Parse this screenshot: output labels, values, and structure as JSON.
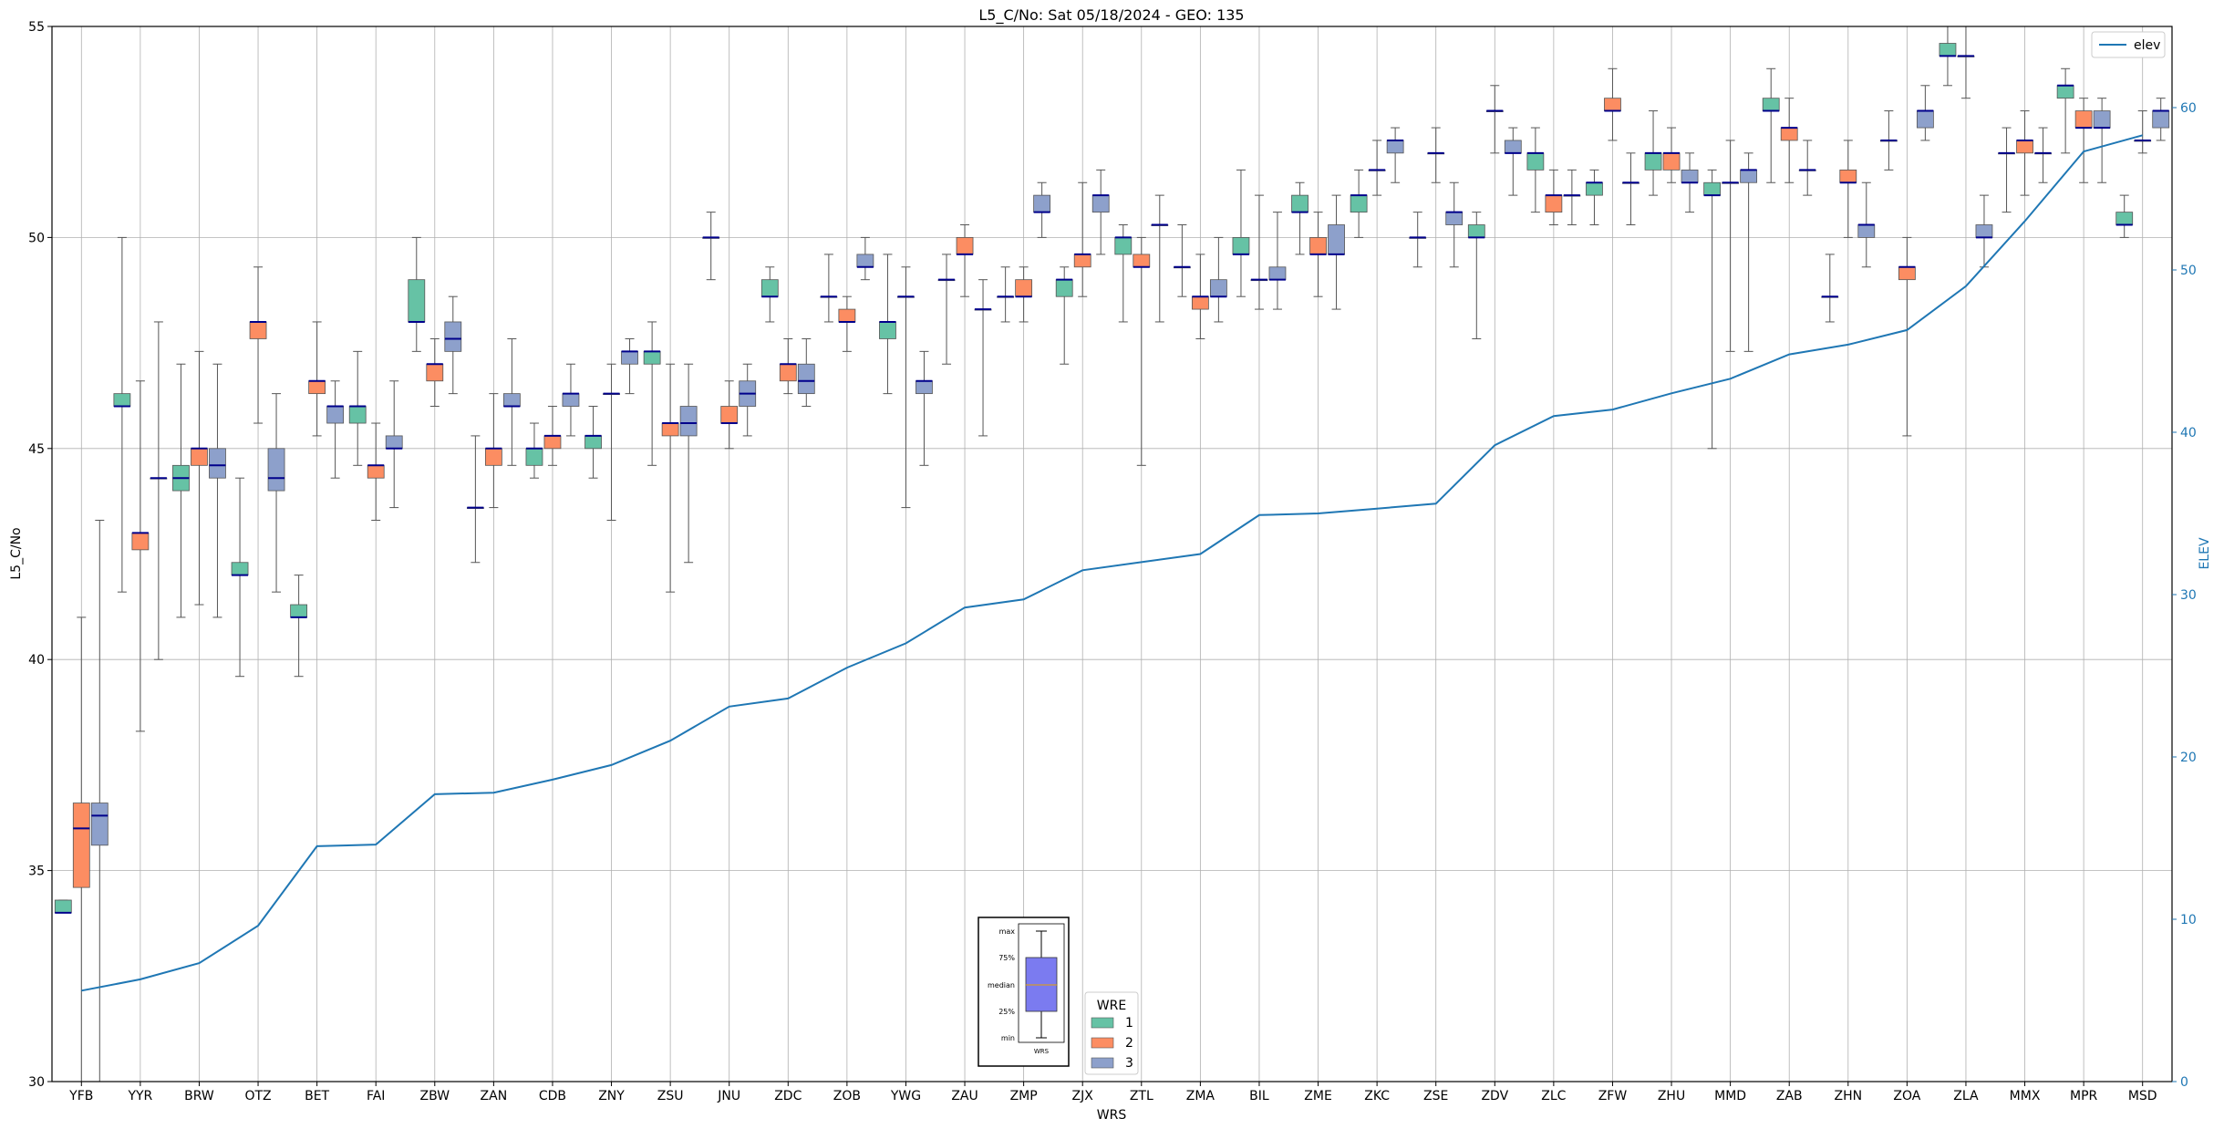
{
  "chart_data": {
    "type": "boxplot",
    "title": "L5_C/No: Sat 05/18/2024 - GEO: 135",
    "xlabel": "WRS",
    "ylabel": "L5_C/No",
    "y2label": "ELEV",
    "ylim": [
      30,
      55
    ],
    "y2lim": [
      0,
      65
    ],
    "yticks": [
      "30",
      "35",
      "40",
      "45",
      "50",
      "55"
    ],
    "y2ticks": [
      "0",
      "10",
      "20",
      "30",
      "40",
      "50",
      "60"
    ],
    "grid": true,
    "categories": [
      "YFB",
      "YYR",
      "BRW",
      "OTZ",
      "BET",
      "FAI",
      "ZBW",
      "ZAN",
      "CDB",
      "ZNY",
      "ZSU",
      "JNU",
      "ZDC",
      "ZOB",
      "YWG",
      "ZAU",
      "ZMP",
      "ZJX",
      "ZTL",
      "ZMA",
      "BIL",
      "ZME",
      "ZKC",
      "ZSE",
      "ZDV",
      "ZLC",
      "ZFW",
      "ZHU",
      "MMD",
      "ZAB",
      "ZHN",
      "ZOA",
      "ZLA",
      "MMX",
      "MPR",
      "MSD"
    ],
    "wre_colors": {
      "1": "#66c2a5",
      "2": "#fc8d62",
      "3": "#8da0cb"
    },
    "legend_wre": {
      "title": "WRE",
      "entries": [
        "1",
        "2",
        "3"
      ]
    },
    "legend_elev": {
      "label": "elev",
      "color": "#1f77b4",
      "placement": "top-right"
    },
    "key_labels": {
      "max": "max",
      "p75": "75%",
      "median": "median",
      "p25": "25%",
      "min": "min",
      "xlabel": "WRS"
    },
    "elev": [
      5.6,
      6.3,
      7.3,
      9.6,
      14.5,
      14.6,
      17.7,
      17.8,
      18.6,
      19.5,
      21.0,
      23.1,
      23.6,
      25.5,
      27.0,
      29.2,
      29.7,
      31.5,
      32.0,
      32.5,
      34.9,
      35.0,
      35.3,
      35.6,
      39.2,
      41.0,
      41.4,
      42.4,
      43.3,
      44.8,
      45.4,
      46.3,
      49.0,
      53.0,
      57.3,
      58.3
    ],
    "boxes": [
      [
        {
          "wre": 1,
          "min": 34.0,
          "q1": 34.0,
          "med": 34.0,
          "q3": 34.3,
          "max": 34.3
        },
        {
          "wre": 2,
          "min": 30.0,
          "q1": 34.6,
          "med": 36.0,
          "q3": 36.6,
          "max": 41.0
        },
        {
          "wre": 3,
          "min": 30.0,
          "q1": 35.6,
          "med": 36.3,
          "q3": 36.6,
          "max": 43.3
        }
      ],
      [
        {
          "wre": 1,
          "min": 41.6,
          "q1": 46.0,
          "med": 46.0,
          "q3": 46.3,
          "max": 50.0
        },
        {
          "wre": 2,
          "min": 38.3,
          "q1": 42.6,
          "med": 43.0,
          "q3": 43.0,
          "max": 46.6
        },
        {
          "wre": 3,
          "min": 40.0,
          "q1": 44.3,
          "med": 44.3,
          "q3": 44.3,
          "max": 48.0
        }
      ],
      [
        {
          "wre": 1,
          "min": 41.0,
          "q1": 44.0,
          "med": 44.3,
          "q3": 44.6,
          "max": 47.0
        },
        {
          "wre": 2,
          "min": 41.3,
          "q1": 44.6,
          "med": 45.0,
          "q3": 45.0,
          "max": 47.3
        },
        {
          "wre": 3,
          "min": 41.0,
          "q1": 44.3,
          "med": 44.6,
          "q3": 45.0,
          "max": 47.0
        }
      ],
      [
        {
          "wre": 1,
          "min": 39.6,
          "q1": 42.0,
          "med": 42.0,
          "q3": 42.3,
          "max": 44.3
        },
        {
          "wre": 2,
          "min": 45.6,
          "q1": 47.6,
          "med": 48.0,
          "q3": 48.0,
          "max": 49.3
        },
        {
          "wre": 3,
          "min": 41.6,
          "q1": 44.0,
          "med": 44.3,
          "q3": 45.0,
          "max": 46.3
        }
      ],
      [
        {
          "wre": 1,
          "min": 39.6,
          "q1": 41.0,
          "med": 41.0,
          "q3": 41.3,
          "max": 42.0
        },
        {
          "wre": 2,
          "min": 45.3,
          "q1": 46.3,
          "med": 46.6,
          "q3": 46.6,
          "max": 48.0
        },
        {
          "wre": 3,
          "min": 44.3,
          "q1": 45.6,
          "med": 46.0,
          "q3": 46.0,
          "max": 46.6
        }
      ],
      [
        {
          "wre": 1,
          "min": 44.6,
          "q1": 45.6,
          "med": 46.0,
          "q3": 46.0,
          "max": 47.3
        },
        {
          "wre": 2,
          "min": 43.3,
          "q1": 44.3,
          "med": 44.6,
          "q3": 44.6,
          "max": 45.6
        },
        {
          "wre": 3,
          "min": 43.6,
          "q1": 45.0,
          "med": 45.0,
          "q3": 45.3,
          "max": 46.6
        }
      ],
      [
        {
          "wre": 1,
          "min": 47.3,
          "q1": 48.0,
          "med": 48.0,
          "q3": 49.0,
          "max": 50.0
        },
        {
          "wre": 2,
          "min": 46.0,
          "q1": 46.6,
          "med": 47.0,
          "q3": 47.0,
          "max": 47.6
        },
        {
          "wre": 3,
          "min": 46.3,
          "q1": 47.3,
          "med": 47.6,
          "q3": 48.0,
          "max": 48.6
        }
      ],
      [
        {
          "wre": 1,
          "min": 42.3,
          "q1": 43.6,
          "med": 43.6,
          "q3": 43.6,
          "max": 45.3
        },
        {
          "wre": 2,
          "min": 43.6,
          "q1": 44.6,
          "med": 45.0,
          "q3": 45.0,
          "max": 46.3
        },
        {
          "wre": 3,
          "min": 44.6,
          "q1": 46.0,
          "med": 46.0,
          "q3": 46.3,
          "max": 47.6
        }
      ],
      [
        {
          "wre": 1,
          "min": 44.3,
          "q1": 44.6,
          "med": 45.0,
          "q3": 45.0,
          "max": 45.6
        },
        {
          "wre": 2,
          "min": 44.6,
          "q1": 45.0,
          "med": 45.3,
          "q3": 45.3,
          "max": 46.0
        },
        {
          "wre": 3,
          "min": 45.3,
          "q1": 46.0,
          "med": 46.3,
          "q3": 46.3,
          "max": 47.0
        }
      ],
      [
        {
          "wre": 1,
          "min": 44.3,
          "q1": 45.0,
          "med": 45.3,
          "q3": 45.3,
          "max": 46.0
        },
        {
          "wre": 2,
          "min": 43.3,
          "q1": 46.3,
          "med": 46.3,
          "q3": 46.3,
          "max": 47.0
        },
        {
          "wre": 3,
          "min": 46.3,
          "q1": 47.0,
          "med": 47.3,
          "q3": 47.3,
          "max": 47.6
        }
      ],
      [
        {
          "wre": 1,
          "min": 44.6,
          "q1": 47.0,
          "med": 47.3,
          "q3": 47.3,
          "max": 48.0
        },
        {
          "wre": 2,
          "min": 41.6,
          "q1": 45.3,
          "med": 45.6,
          "q3": 45.6,
          "max": 47.0
        },
        {
          "wre": 3,
          "min": 42.3,
          "q1": 45.3,
          "med": 45.6,
          "q3": 46.0,
          "max": 47.0
        }
      ],
      [
        {
          "wre": 1,
          "min": 49.0,
          "q1": 50.0,
          "med": 50.0,
          "q3": 50.0,
          "max": 50.6
        },
        {
          "wre": 2,
          "min": 45.0,
          "q1": 45.6,
          "med": 45.6,
          "q3": 46.0,
          "max": 46.6
        },
        {
          "wre": 3,
          "min": 45.3,
          "q1": 46.0,
          "med": 46.3,
          "q3": 46.6,
          "max": 47.0
        }
      ],
      [
        {
          "wre": 1,
          "min": 48.0,
          "q1": 48.6,
          "med": 48.6,
          "q3": 49.0,
          "max": 49.3
        },
        {
          "wre": 2,
          "min": 46.3,
          "q1": 46.6,
          "med": 47.0,
          "q3": 47.0,
          "max": 47.6
        },
        {
          "wre": 3,
          "min": 46.0,
          "q1": 46.3,
          "med": 46.6,
          "q3": 47.0,
          "max": 47.6
        }
      ],
      [
        {
          "wre": 1,
          "min": 48.0,
          "q1": 48.6,
          "med": 48.6,
          "q3": 48.6,
          "max": 49.6
        },
        {
          "wre": 2,
          "min": 47.3,
          "q1": 48.0,
          "med": 48.0,
          "q3": 48.3,
          "max": 48.6
        },
        {
          "wre": 3,
          "min": 49.0,
          "q1": 49.3,
          "med": 49.3,
          "q3": 49.6,
          "max": 50.0
        }
      ],
      [
        {
          "wre": 1,
          "min": 46.3,
          "q1": 47.6,
          "med": 48.0,
          "q3": 48.0,
          "max": 49.6
        },
        {
          "wre": 2,
          "min": 43.6,
          "q1": 48.6,
          "med": 48.6,
          "q3": 48.6,
          "max": 49.3
        },
        {
          "wre": 3,
          "min": 44.6,
          "q1": 46.3,
          "med": 46.6,
          "q3": 46.6,
          "max": 47.3
        }
      ],
      [
        {
          "wre": 1,
          "min": 47.0,
          "q1": 49.0,
          "med": 49.0,
          "q3": 49.0,
          "max": 49.6
        },
        {
          "wre": 2,
          "min": 48.6,
          "q1": 49.6,
          "med": 49.6,
          "q3": 50.0,
          "max": 50.3
        },
        {
          "wre": 3,
          "min": 45.3,
          "q1": 48.3,
          "med": 48.3,
          "q3": 48.3,
          "max": 49.0
        }
      ],
      [
        {
          "wre": 1,
          "min": 48.0,
          "q1": 48.6,
          "med": 48.6,
          "q3": 48.6,
          "max": 49.3
        },
        {
          "wre": 2,
          "min": 48.0,
          "q1": 48.6,
          "med": 48.6,
          "q3": 49.0,
          "max": 49.3
        },
        {
          "wre": 3,
          "min": 50.0,
          "q1": 50.6,
          "med": 50.6,
          "q3": 51.0,
          "max": 51.3
        }
      ],
      [
        {
          "wre": 1,
          "min": 47.0,
          "q1": 48.6,
          "med": 49.0,
          "q3": 49.0,
          "max": 49.3
        },
        {
          "wre": 2,
          "min": 48.6,
          "q1": 49.3,
          "med": 49.6,
          "q3": 49.6,
          "max": 51.3
        },
        {
          "wre": 3,
          "min": 49.6,
          "q1": 50.6,
          "med": 51.0,
          "q3": 51.0,
          "max": 51.6
        }
      ],
      [
        {
          "wre": 1,
          "min": 48.0,
          "q1": 49.6,
          "med": 50.0,
          "q3": 50.0,
          "max": 50.3
        },
        {
          "wre": 2,
          "min": 44.6,
          "q1": 49.3,
          "med": 49.3,
          "q3": 49.6,
          "max": 50.0
        },
        {
          "wre": 3,
          "min": 48.0,
          "q1": 50.3,
          "med": 50.3,
          "q3": 50.3,
          "max": 51.0
        }
      ],
      [
        {
          "wre": 1,
          "min": 48.6,
          "q1": 49.3,
          "med": 49.3,
          "q3": 49.3,
          "max": 50.3
        },
        {
          "wre": 2,
          "min": 47.6,
          "q1": 48.3,
          "med": 48.6,
          "q3": 48.6,
          "max": 49.6
        },
        {
          "wre": 3,
          "min": 48.0,
          "q1": 48.6,
          "med": 48.6,
          "q3": 49.0,
          "max": 50.0
        }
      ],
      [
        {
          "wre": 1,
          "min": 48.6,
          "q1": 49.6,
          "med": 49.6,
          "q3": 50.0,
          "max": 51.6
        },
        {
          "wre": 2,
          "min": 48.3,
          "q1": 49.0,
          "med": 49.0,
          "q3": 49.0,
          "max": 51.0
        },
        {
          "wre": 3,
          "min": 48.3,
          "q1": 49.0,
          "med": 49.0,
          "q3": 49.3,
          "max": 50.6
        }
      ],
      [
        {
          "wre": 1,
          "min": 49.6,
          "q1": 50.6,
          "med": 50.6,
          "q3": 51.0,
          "max": 51.3
        },
        {
          "wre": 2,
          "min": 48.6,
          "q1": 49.6,
          "med": 49.6,
          "q3": 50.0,
          "max": 50.6
        },
        {
          "wre": 3,
          "min": 48.3,
          "q1": 49.6,
          "med": 49.6,
          "q3": 50.3,
          "max": 51.0
        }
      ],
      [
        {
          "wre": 1,
          "min": 50.0,
          "q1": 50.6,
          "med": 51.0,
          "q3": 51.0,
          "max": 51.6
        },
        {
          "wre": 2,
          "min": 51.0,
          "q1": 51.6,
          "med": 51.6,
          "q3": 51.6,
          "max": 52.3
        },
        {
          "wre": 3,
          "min": 51.3,
          "q1": 52.0,
          "med": 52.3,
          "q3": 52.3,
          "max": 52.6
        }
      ],
      [
        {
          "wre": 1,
          "min": 49.3,
          "q1": 50.0,
          "med": 50.0,
          "q3": 50.0,
          "max": 50.6
        },
        {
          "wre": 2,
          "min": 51.3,
          "q1": 52.0,
          "med": 52.0,
          "q3": 52.0,
          "max": 52.6
        },
        {
          "wre": 3,
          "min": 49.3,
          "q1": 50.3,
          "med": 50.6,
          "q3": 50.6,
          "max": 51.3
        }
      ],
      [
        {
          "wre": 1,
          "min": 47.6,
          "q1": 50.0,
          "med": 50.0,
          "q3": 50.3,
          "max": 50.6
        },
        {
          "wre": 2,
          "min": 52.0,
          "q1": 53.0,
          "med": 53.0,
          "q3": 53.0,
          "max": 53.6
        },
        {
          "wre": 3,
          "min": 51.0,
          "q1": 52.0,
          "med": 52.0,
          "q3": 52.3,
          "max": 52.6
        }
      ],
      [
        {
          "wre": 1,
          "min": 50.6,
          "q1": 51.6,
          "med": 52.0,
          "q3": 52.0,
          "max": 52.6
        },
        {
          "wre": 2,
          "min": 50.3,
          "q1": 50.6,
          "med": 51.0,
          "q3": 51.0,
          "max": 51.6
        },
        {
          "wre": 3,
          "min": 50.3,
          "q1": 51.0,
          "med": 51.0,
          "q3": 51.0,
          "max": 51.6
        }
      ],
      [
        {
          "wre": 1,
          "min": 50.3,
          "q1": 51.0,
          "med": 51.3,
          "q3": 51.3,
          "max": 51.6
        },
        {
          "wre": 2,
          "min": 52.3,
          "q1": 53.0,
          "med": 53.0,
          "q3": 53.3,
          "max": 54.0
        },
        {
          "wre": 3,
          "min": 50.3,
          "q1": 51.3,
          "med": 51.3,
          "q3": 51.3,
          "max": 52.0
        }
      ],
      [
        {
          "wre": 1,
          "min": 51.0,
          "q1": 51.6,
          "med": 52.0,
          "q3": 52.0,
          "max": 53.0
        },
        {
          "wre": 2,
          "min": 51.3,
          "q1": 51.6,
          "med": 52.0,
          "q3": 52.0,
          "max": 52.6
        },
        {
          "wre": 3,
          "min": 50.6,
          "q1": 51.3,
          "med": 51.3,
          "q3": 51.6,
          "max": 52.0
        }
      ],
      [
        {
          "wre": 1,
          "min": 45.0,
          "q1": 51.0,
          "med": 51.0,
          "q3": 51.3,
          "max": 51.6
        },
        {
          "wre": 2,
          "min": 47.3,
          "q1": 51.3,
          "med": 51.3,
          "q3": 51.3,
          "max": 52.3
        },
        {
          "wre": 3,
          "min": 47.3,
          "q1": 51.3,
          "med": 51.6,
          "q3": 51.6,
          "max": 52.0
        }
      ],
      [
        {
          "wre": 1,
          "min": 51.3,
          "q1": 53.0,
          "med": 53.0,
          "q3": 53.3,
          "max": 54.0
        },
        {
          "wre": 2,
          "min": 51.3,
          "q1": 52.3,
          "med": 52.6,
          "q3": 52.6,
          "max": 53.3
        },
        {
          "wre": 3,
          "min": 51.0,
          "q1": 51.6,
          "med": 51.6,
          "q3": 51.6,
          "max": 52.3
        }
      ],
      [
        {
          "wre": 1,
          "min": 48.0,
          "q1": 48.6,
          "med": 48.6,
          "q3": 48.6,
          "max": 49.6
        },
        {
          "wre": 2,
          "min": 50.0,
          "q1": 51.3,
          "med": 51.3,
          "q3": 51.6,
          "max": 52.3
        },
        {
          "wre": 3,
          "min": 49.3,
          "q1": 50.0,
          "med": 50.3,
          "q3": 50.3,
          "max": 51.3
        }
      ],
      [
        {
          "wre": 1,
          "min": 51.6,
          "q1": 52.3,
          "med": 52.3,
          "q3": 52.3,
          "max": 53.0
        },
        {
          "wre": 2,
          "min": 45.3,
          "q1": 49.0,
          "med": 49.3,
          "q3": 49.3,
          "max": 50.0
        },
        {
          "wre": 3,
          "min": 52.3,
          "q1": 52.6,
          "med": 53.0,
          "q3": 53.0,
          "max": 53.6
        }
      ],
      [
        {
          "wre": 1,
          "min": 53.6,
          "q1": 54.3,
          "med": 54.3,
          "q3": 54.6,
          "max": 55.0
        },
        {
          "wre": 2,
          "min": 53.3,
          "q1": 54.3,
          "med": 54.3,
          "q3": 54.3,
          "max": 55.0
        },
        {
          "wre": 3,
          "min": 49.3,
          "q1": 50.0,
          "med": 50.0,
          "q3": 50.3,
          "max": 51.0
        }
      ],
      [
        {
          "wre": 1,
          "min": 50.6,
          "q1": 52.0,
          "med": 52.0,
          "q3": 52.0,
          "max": 52.6
        },
        {
          "wre": 2,
          "min": 51.0,
          "q1": 52.0,
          "med": 52.3,
          "q3": 52.3,
          "max": 53.0
        },
        {
          "wre": 3,
          "min": 51.3,
          "q1": 52.0,
          "med": 52.0,
          "q3": 52.0,
          "max": 52.6
        }
      ],
      [
        {
          "wre": 1,
          "min": 52.0,
          "q1": 53.3,
          "med": 53.6,
          "q3": 53.6,
          "max": 54.0
        },
        {
          "wre": 2,
          "min": 51.3,
          "q1": 52.6,
          "med": 52.6,
          "q3": 53.0,
          "max": 53.3
        },
        {
          "wre": 3,
          "min": 51.3,
          "q1": 52.6,
          "med": 52.6,
          "q3": 53.0,
          "max": 53.3
        }
      ],
      [
        {
          "wre": 1,
          "min": 50.0,
          "q1": 50.3,
          "med": 50.3,
          "q3": 50.6,
          "max": 51.0
        },
        {
          "wre": 2,
          "min": 52.0,
          "q1": 52.3,
          "med": 52.3,
          "q3": 52.3,
          "max": 53.0
        },
        {
          "wre": 3,
          "min": 52.3,
          "q1": 52.6,
          "med": 53.0,
          "q3": 53.0,
          "max": 53.3
        }
      ]
    ]
  }
}
